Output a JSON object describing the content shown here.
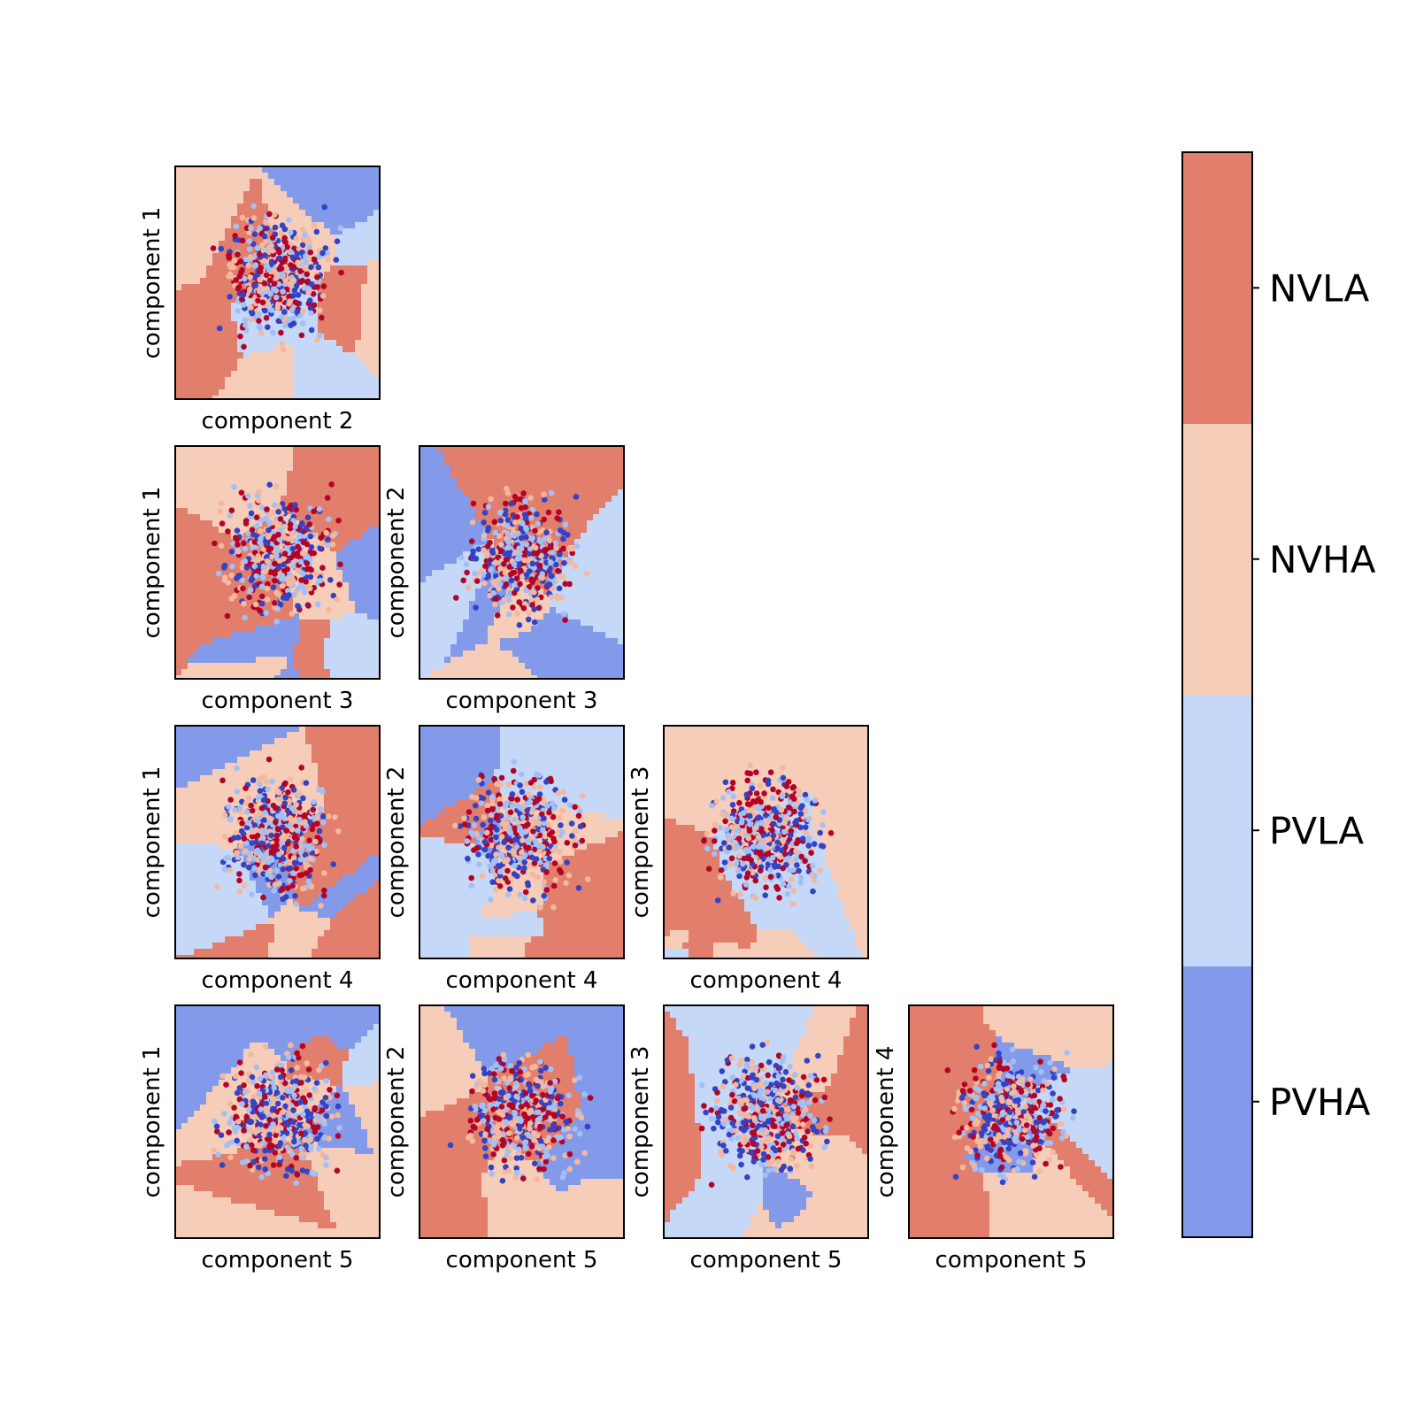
{
  "chart_data": {
    "type": "heatmap",
    "description_kind": "pairwise decision regions with scatter overlay",
    "classes": [
      "PVHA",
      "PVLA",
      "NVHA",
      "NVLA"
    ],
    "class_colors": {
      "PVHA": "#8399ea",
      "PVLA": "#c6d8f8",
      "NVHA": "#f6cdb9",
      "NVLA": "#e27e6c"
    },
    "point_colors": [
      "#3343c4",
      "#a3c0f5",
      "#f3b89d",
      "#b40425"
    ],
    "colorbar": {
      "ticks": [
        "PVHA",
        "PVLA",
        "NVHA",
        "NVLA"
      ]
    },
    "panels": [
      {
        "row": 0,
        "col": 0,
        "xlabel": "component 2",
        "ylabel": "component 1"
      },
      {
        "row": 1,
        "col": 0,
        "xlabel": "component 3",
        "ylabel": "component 1"
      },
      {
        "row": 1,
        "col": 1,
        "xlabel": "component 3",
        "ylabel": "component 2"
      },
      {
        "row": 2,
        "col": 0,
        "xlabel": "component 4",
        "ylabel": "component 1"
      },
      {
        "row": 2,
        "col": 1,
        "xlabel": "component 4",
        "ylabel": "component 2"
      },
      {
        "row": 2,
        "col": 2,
        "xlabel": "component 4",
        "ylabel": "component 3"
      },
      {
        "row": 3,
        "col": 0,
        "xlabel": "component 5",
        "ylabel": "component 1"
      },
      {
        "row": 3,
        "col": 1,
        "xlabel": "component 5",
        "ylabel": "component 2"
      },
      {
        "row": 3,
        "col": 2,
        "xlabel": "component 5",
        "ylabel": "component 3"
      },
      {
        "row": 3,
        "col": 3,
        "xlabel": "component 5",
        "ylabel": "component 4"
      }
    ]
  }
}
